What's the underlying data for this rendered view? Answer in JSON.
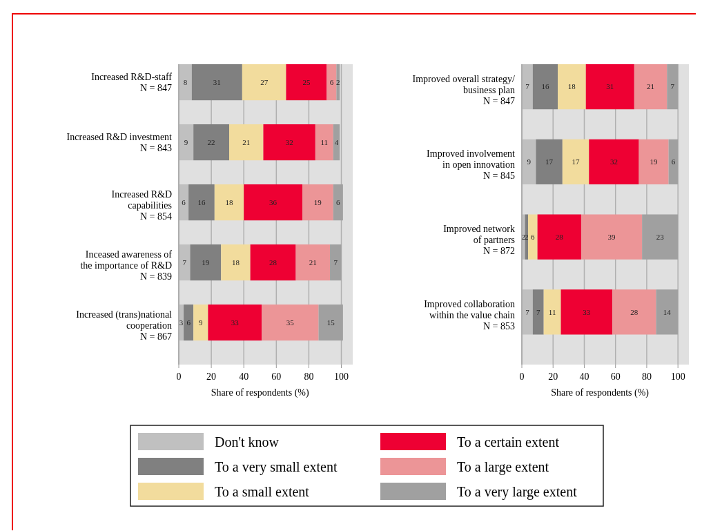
{
  "chart_data": [
    {
      "type": "bar",
      "orientation": "horizontal",
      "stacked": true,
      "xlabel": "Share of respondents (%)",
      "categories": [
        "Increased R&D-staff\nN = 847",
        "Increased R&D investment\nN = 843",
        "Increased R&D\ncapabilities\nN = 854",
        "Inceased awareness of\nthe importance of R&D\nN = 839",
        "Increased (trans)national\ncooperation\nN = 867"
      ],
      "series": [
        {
          "name": "Don't know",
          "color": "#c0c0c0",
          "values": [
            8,
            9,
            6,
            7,
            3
          ]
        },
        {
          "name": "To a very small extent",
          "color": "#808080",
          "values": [
            31,
            22,
            16,
            19,
            6
          ]
        },
        {
          "name": "To a small extent",
          "color": "#f2dc9d",
          "values": [
            27,
            21,
            18,
            18,
            9
          ]
        },
        {
          "name": "To a certain extent",
          "color": "#ee0033",
          "values": [
            25,
            32,
            36,
            28,
            33
          ]
        },
        {
          "name": "To a large extent",
          "color": "#ec9597",
          "values": [
            6,
            11,
            19,
            21,
            35
          ]
        },
        {
          "name": "To a very large extent",
          "color": "#a0a0a0",
          "values": [
            2,
            4,
            6,
            7,
            15
          ]
        }
      ],
      "xlim": [
        0,
        107
      ],
      "xticks": [
        0,
        20,
        40,
        60,
        80,
        100
      ],
      "grid": "x",
      "data_labels": true,
      "legend": "bottom"
    },
    {
      "type": "bar",
      "orientation": "horizontal",
      "stacked": true,
      "xlabel": "Share of respondents (%)",
      "categories": [
        "Improved overall strategy/\nbusiness plan\nN = 847",
        "Improved involvement\nin open innovation\nN = 845",
        "Improved network\nof partners\nN = 872",
        "Improved collaboration\nwithin the value chain\nN = 853"
      ],
      "series": [
        {
          "name": "Don't know",
          "color": "#c0c0c0",
          "values": [
            7,
            9,
            2,
            7
          ]
        },
        {
          "name": "To a very small extent",
          "color": "#808080",
          "values": [
            16,
            17,
            2,
            7
          ]
        },
        {
          "name": "To a small extent",
          "color": "#f2dc9d",
          "values": [
            18,
            17,
            6,
            11
          ]
        },
        {
          "name": "To a certain extent",
          "color": "#ee0033",
          "values": [
            31,
            32,
            28,
            33
          ]
        },
        {
          "name": "To a large extent",
          "color": "#ec9597",
          "values": [
            21,
            19,
            39,
            28
          ]
        },
        {
          "name": "To a very large extent",
          "color": "#a0a0a0",
          "values": [
            7,
            6,
            23,
            14
          ]
        }
      ],
      "xlim": [
        0,
        107
      ],
      "xticks": [
        0,
        20,
        40,
        60,
        80,
        100
      ],
      "grid": "x",
      "data_labels": true,
      "legend": "bottom"
    }
  ]
}
